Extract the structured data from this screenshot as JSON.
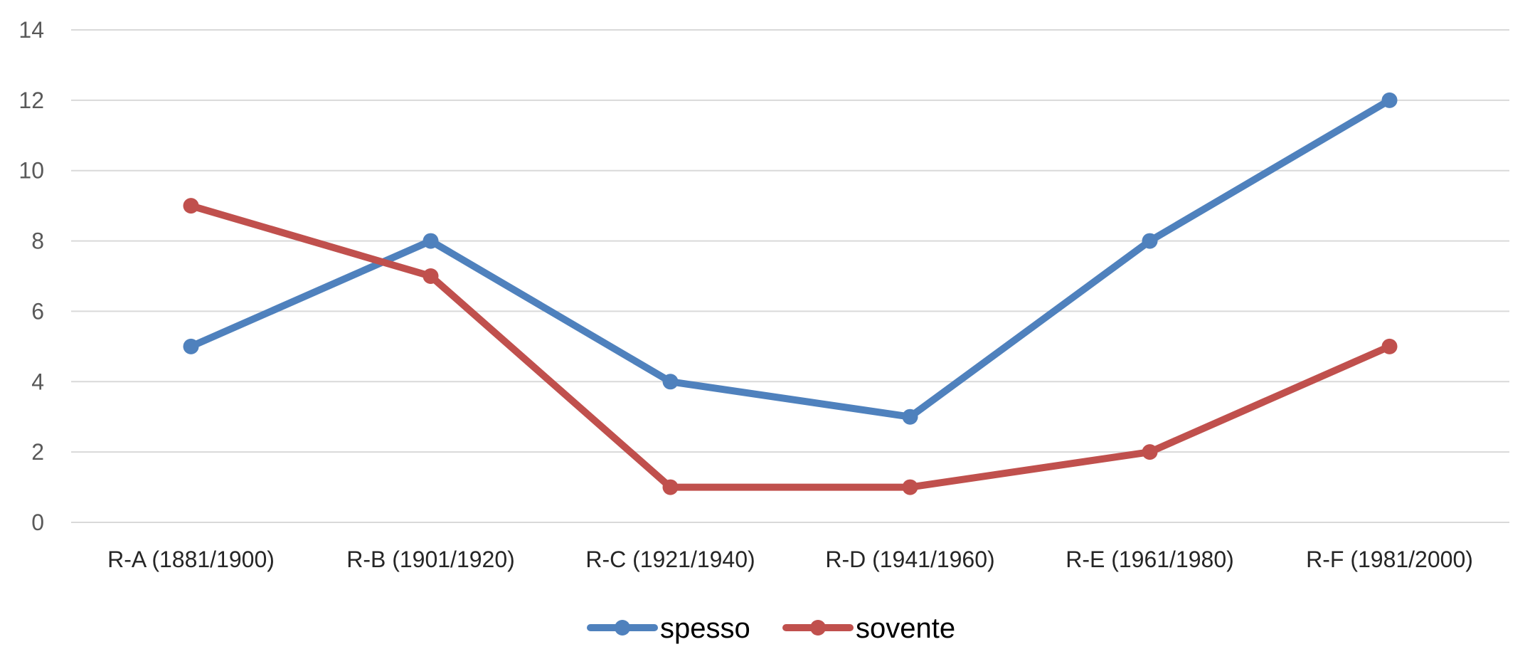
{
  "chart_data": {
    "type": "line",
    "title": "",
    "xlabel": "",
    "ylabel": "",
    "categories": [
      "R-A (1881/1900)",
      "R-B (1901/1920)",
      "R-C (1921/1940)",
      "R-D (1941/1960)",
      "R-E (1961/1980)",
      "R-F (1981/2000)"
    ],
    "ylim": [
      0,
      14
    ],
    "yticks": [
      0,
      2,
      4,
      6,
      8,
      10,
      12,
      14
    ],
    "grid": true,
    "legend_position": "bottom",
    "series": [
      {
        "name": "spesso",
        "values": [
          5,
          8,
          4,
          3,
          8,
          12
        ],
        "color": "#4F81BD"
      },
      {
        "name": "sovente",
        "values": [
          9,
          7,
          1,
          1,
          2,
          5
        ],
        "color": "#C0504D"
      }
    ]
  },
  "colors": {
    "gridline": "#D9D9D9",
    "axis": "#D9D9D9"
  }
}
